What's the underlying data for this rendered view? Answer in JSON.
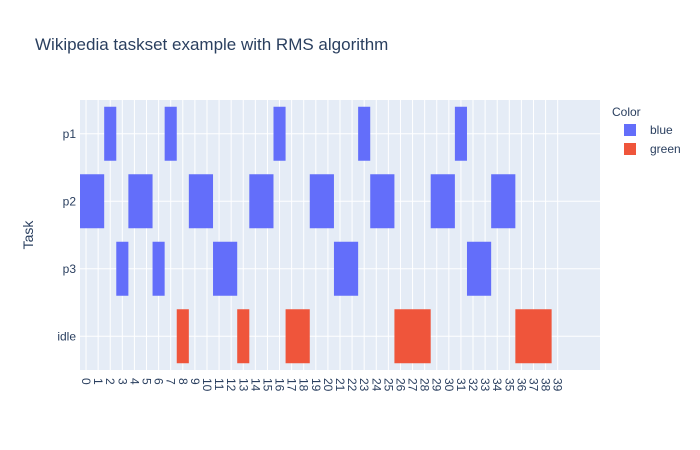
{
  "chart_data": {
    "type": "bar",
    "orientation": "horizontal",
    "title": "Wikipedia taskset example with RMS algorithm",
    "xlabel": "",
    "ylabel": "Task",
    "categories": [
      "p1",
      "p2",
      "p3",
      "idle"
    ],
    "x_ticks": [
      "0",
      "1",
      "2",
      "3",
      "4",
      "5",
      "6",
      "7",
      "8",
      "9",
      "10",
      "11",
      "12",
      "13",
      "14",
      "15",
      "16",
      "17",
      "18",
      "19",
      "20",
      "21",
      "22",
      "23",
      "24",
      "25",
      "26",
      "27",
      "28",
      "29",
      "30",
      "31",
      "32",
      "33",
      "34",
      "35",
      "36",
      "37",
      "38",
      "39"
    ],
    "xlim": [
      -0.5,
      42.5
    ],
    "grid": true,
    "legend": {
      "title": "Color",
      "placement": "right",
      "entries": [
        {
          "name": "blue",
          "color": "#636efa"
        },
        {
          "name": "green",
          "color": "#ef553b"
        }
      ]
    },
    "series": [
      {
        "name": "blue",
        "color": "#636efa",
        "bars": [
          {
            "task": "p1",
            "start": 1.5,
            "end": 2.5
          },
          {
            "task": "p1",
            "start": 6.5,
            "end": 7.5
          },
          {
            "task": "p1",
            "start": 15.5,
            "end": 16.5
          },
          {
            "task": "p1",
            "start": 22.5,
            "end": 23.5
          },
          {
            "task": "p1",
            "start": 30.5,
            "end": 31.5
          },
          {
            "task": "p2",
            "start": -0.5,
            "end": 1.5
          },
          {
            "task": "p2",
            "start": 3.5,
            "end": 5.5
          },
          {
            "task": "p2",
            "start": 8.5,
            "end": 10.5
          },
          {
            "task": "p2",
            "start": 13.5,
            "end": 15.5
          },
          {
            "task": "p2",
            "start": 18.5,
            "end": 20.5
          },
          {
            "task": "p2",
            "start": 23.5,
            "end": 25.5
          },
          {
            "task": "p2",
            "start": 28.5,
            "end": 30.5
          },
          {
            "task": "p2",
            "start": 33.5,
            "end": 35.5
          },
          {
            "task": "p3",
            "start": 2.5,
            "end": 3.5
          },
          {
            "task": "p3",
            "start": 5.5,
            "end": 6.5
          },
          {
            "task": "p3",
            "start": 10.5,
            "end": 12.5
          },
          {
            "task": "p3",
            "start": 20.5,
            "end": 22.5
          },
          {
            "task": "p3",
            "start": 31.5,
            "end": 33.5
          }
        ]
      },
      {
        "name": "green",
        "color": "#ef553b",
        "bars": [
          {
            "task": "idle",
            "start": 7.5,
            "end": 8.5
          },
          {
            "task": "idle",
            "start": 12.5,
            "end": 13.5
          },
          {
            "task": "idle",
            "start": 16.5,
            "end": 18.5
          },
          {
            "task": "idle",
            "start": 25.5,
            "end": 28.5
          },
          {
            "task": "idle",
            "start": 35.5,
            "end": 38.5
          }
        ]
      }
    ]
  }
}
